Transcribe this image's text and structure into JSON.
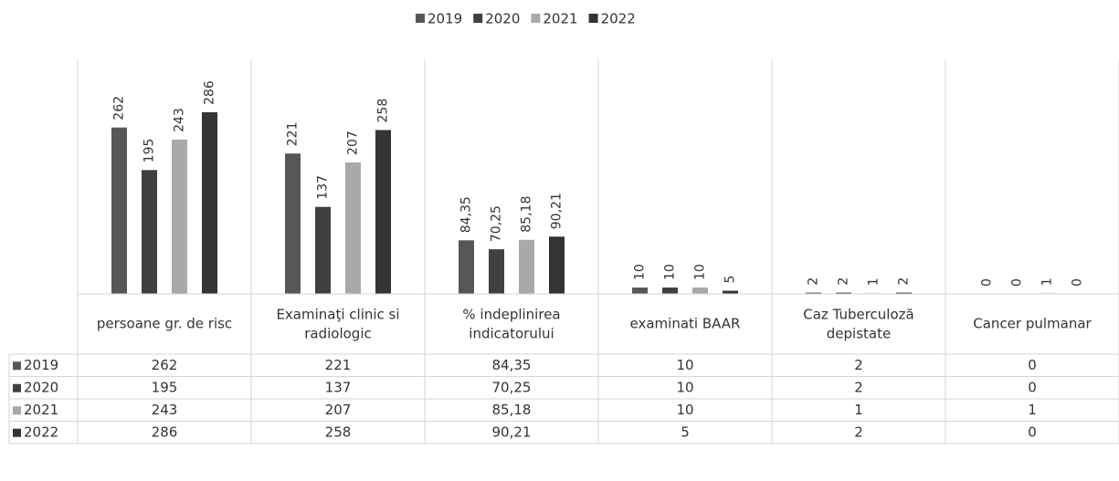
{
  "chart_data": {
    "type": "bar",
    "categories": [
      "persoane gr. de risc",
      "Examinaţi clinic si radiologic",
      "% indeplinirea indicatorului",
      "examinati BAAR",
      "Caz Tuberculoză depistate",
      "Cancer pulmanar"
    ],
    "series": [
      {
        "name": "2019",
        "color": "#575757",
        "values": [
          262,
          221,
          84.35,
          10,
          2,
          0
        ],
        "value_labels": [
          "262",
          "221",
          "84,35",
          "10",
          "2",
          "0"
        ]
      },
      {
        "name": "2020",
        "color": "#404040",
        "values": [
          195,
          137,
          70.25,
          10,
          2,
          0
        ],
        "value_labels": [
          "195",
          "137",
          "70,25",
          "10",
          "2",
          "0"
        ]
      },
      {
        "name": "2021",
        "color": "#a9a9a9",
        "values": [
          243,
          207,
          85.18,
          10,
          1,
          1
        ],
        "value_labels": [
          "243",
          "207",
          "85,18",
          "10",
          "1",
          "1"
        ]
      },
      {
        "name": "2022",
        "color": "#343434",
        "values": [
          286,
          258,
          90.21,
          5,
          2,
          0
        ],
        "value_labels": [
          "286",
          "258",
          "90,21",
          "5",
          "2",
          "0"
        ]
      }
    ],
    "legend": "top"
  }
}
